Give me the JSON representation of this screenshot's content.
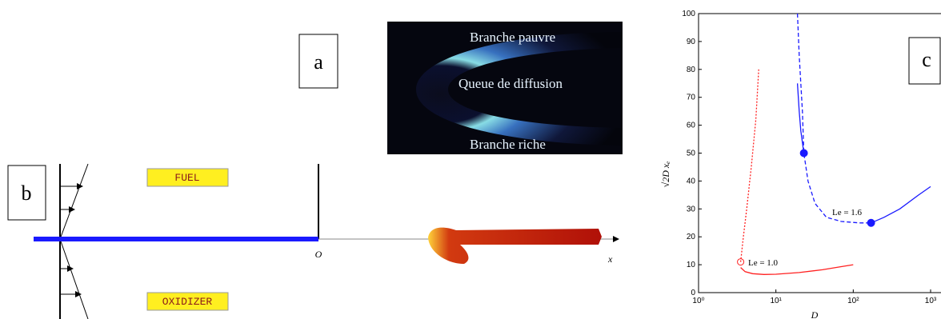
{
  "panels": {
    "a": "a",
    "b": "b",
    "c": "c"
  },
  "photo": {
    "labels": [
      "Branche pauvre",
      "Queue de diffusion",
      "Branche riche"
    ]
  },
  "diagram": {
    "fuel": "FUEL",
    "oxidizer": "OXIDIZER",
    "origin": "O",
    "axis": "x"
  },
  "chart_data": {
    "type": "line",
    "x_label": "D",
    "y_label": "√2D xₑ",
    "xscale": "log",
    "xlim": [
      1,
      1000
    ],
    "xticks": [
      {
        "value": 1,
        "label": "10⁰"
      },
      {
        "value": 10,
        "label": "10¹"
      },
      {
        "value": 100,
        "label": "10²"
      },
      {
        "value": 1000,
        "label": "10³"
      }
    ],
    "ylim": [
      0,
      100
    ],
    "yticks": [
      0,
      10,
      20,
      30,
      40,
      50,
      60,
      70,
      80,
      90,
      100
    ],
    "annotations": [
      "Le = 1.6",
      "Le = 1.0"
    ],
    "series": [
      {
        "color": "#ff2020",
        "style": "solid",
        "x": [
          3.5,
          4,
          5,
          7,
          10,
          20,
          40,
          70,
          100
        ],
        "values": [
          9,
          7.5,
          6.8,
          6.5,
          6.6,
          7.2,
          8.2,
          9.3,
          10
        ]
      },
      {
        "color": "#ff2020",
        "style": "dotted",
        "x": [
          3.5,
          3.8,
          4.2,
          4.8,
          5.5,
          6
        ],
        "values": [
          11,
          20,
          30,
          45,
          62,
          80
        ]
      },
      {
        "color": "#ff2020",
        "style": "none",
        "marker": "open",
        "x": [
          3.5
        ],
        "values": [
          11
        ]
      },
      {
        "color": "#1a1aff",
        "style": "solid",
        "x": [
          19,
          20,
          21,
          23
        ],
        "values": [
          75,
          65,
          58,
          50
        ]
      },
      {
        "color": "#1a1aff",
        "style": "solid",
        "x": [
          170,
          250,
          400,
          700,
          1000
        ],
        "values": [
          25,
          27,
          30,
          35,
          38
        ]
      },
      {
        "color": "#1a1aff",
        "style": "dashed",
        "x": [
          19,
          20,
          22,
          23,
          26,
          32,
          45,
          70,
          120,
          170
        ],
        "values": [
          100,
          85,
          65,
          50,
          40,
          32,
          27,
          25.5,
          25,
          25
        ]
      },
      {
        "color": "#1a1aff",
        "style": "none",
        "marker": "filled",
        "x": [
          23,
          170
        ],
        "values": [
          50,
          25
        ]
      }
    ]
  }
}
